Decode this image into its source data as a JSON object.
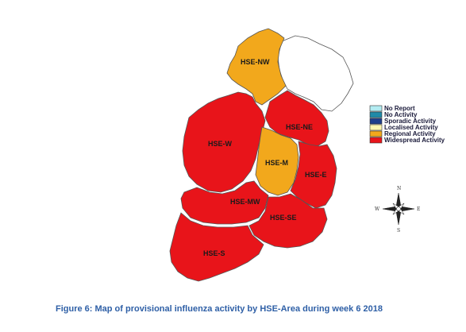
{
  "map": {
    "regions": [
      {
        "id": "hse-nw",
        "label": "HSE-NW",
        "activity": "Regional Activity"
      },
      {
        "id": "hse-ne",
        "label": "HSE-NE",
        "activity": "Widespread Activity"
      },
      {
        "id": "hse-w",
        "label": "HSE-W",
        "activity": "Widespread Activity"
      },
      {
        "id": "hse-m",
        "label": "HSE-M",
        "activity": "Regional Activity"
      },
      {
        "id": "hse-e",
        "label": "HSE-E",
        "activity": "Widespread Activity"
      },
      {
        "id": "hse-mw",
        "label": "HSE-MW",
        "activity": "Widespread Activity"
      },
      {
        "id": "hse-se",
        "label": "HSE-SE",
        "activity": "Widespread Activity"
      },
      {
        "id": "hse-s",
        "label": "HSE-S",
        "activity": "Widespread Activity"
      }
    ]
  },
  "legend": {
    "items": [
      {
        "label": "No Report",
        "color": "#b3ecf2"
      },
      {
        "label": "No Activity",
        "color": "#1f8aa8"
      },
      {
        "label": "Sporadic Activity",
        "color": "#1f3f8c"
      },
      {
        "label": "Localised Activity",
        "color": "#fff7b0"
      },
      {
        "label": "Regional Activity",
        "color": "#f2a81c"
      },
      {
        "label": "Widespread Activity",
        "color": "#e8141a"
      }
    ]
  },
  "compass": {
    "n": "N",
    "s": "S",
    "e": "E",
    "w": "W"
  },
  "caption": "Figure 6: Map of provisional influenza activity by HSE-Area during week 6 2018"
}
